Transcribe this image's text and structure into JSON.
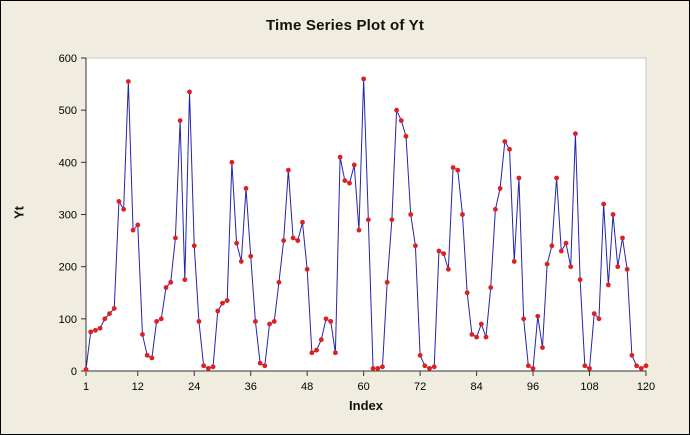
{
  "window": {
    "bg_color": "#F0EDE0",
    "border_color": "#000000"
  },
  "chart_data": {
    "type": "line",
    "title": "Time Series Plot of Yt",
    "xlabel": "Index",
    "ylabel": "Yt",
    "xlim": [
      1,
      120
    ],
    "ylim": [
      0,
      600
    ],
    "x_ticks": [
      1,
      12,
      24,
      36,
      48,
      60,
      72,
      84,
      96,
      108,
      120
    ],
    "y_ticks": [
      0,
      100,
      200,
      300,
      400,
      500,
      600
    ],
    "grid": false,
    "legend": null,
    "plot_bg": "#FFFFFF",
    "line_color": "#2424AE",
    "marker_color": "#DF2020",
    "axis_color": "#333333",
    "series_name": "Yt",
    "values": [
      3,
      75,
      78,
      82,
      100,
      110,
      120,
      325,
      310,
      555,
      270,
      280,
      70,
      30,
      25,
      95,
      100,
      160,
      170,
      255,
      480,
      175,
      535,
      240,
      95,
      10,
      5,
      8,
      115,
      130,
      135,
      400,
      245,
      210,
      350,
      220,
      95,
      15,
      10,
      90,
      95,
      170,
      250,
      385,
      255,
      250,
      285,
      195,
      35,
      40,
      60,
      100,
      95,
      35,
      410,
      365,
      360,
      395,
      270,
      560,
      290,
      5,
      5,
      8,
      170,
      290,
      500,
      480,
      450,
      300,
      240,
      30,
      10,
      5,
      8,
      230,
      225,
      195,
      390,
      385,
      300,
      150,
      70,
      65,
      90,
      65,
      160,
      310,
      350,
      440,
      425,
      210,
      370,
      100,
      10,
      5,
      105,
      45,
      205,
      240,
      370,
      230,
      245,
      200,
      455,
      175,
      10,
      5,
      110,
      100,
      320,
      165,
      300,
      200,
      255,
      195,
      30,
      10,
      5,
      10
    ]
  }
}
